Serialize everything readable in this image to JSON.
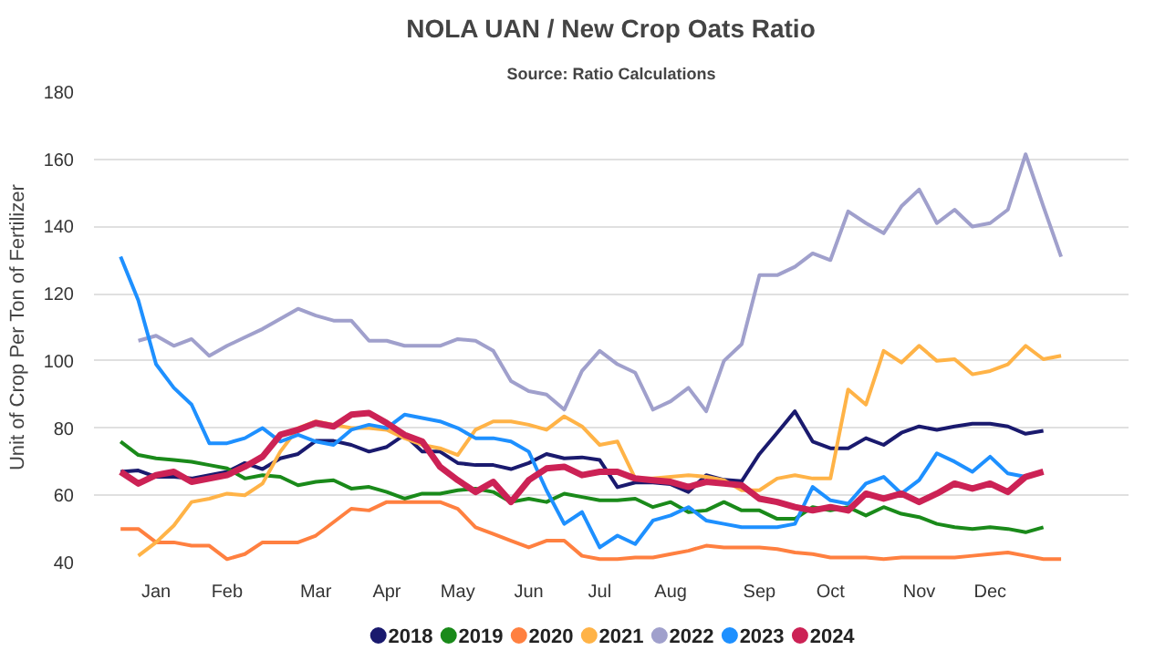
{
  "chart_data": {
    "type": "line",
    "title": "NOLA UAN / New Crop Oats Ratio",
    "subtitle": "Source: Ratio Calculations",
    "ylabel": "Unit of Crop Per Ton of Fertilizer",
    "categories": [
      null,
      null,
      "Jan",
      null,
      null,
      null,
      "Feb",
      null,
      null,
      null,
      null,
      "Mar",
      null,
      null,
      null,
      "Apr",
      null,
      null,
      null,
      "May",
      null,
      null,
      null,
      "Jun",
      null,
      null,
      null,
      "Jul",
      null,
      null,
      null,
      "Aug",
      null,
      null,
      null,
      null,
      "Sep",
      null,
      null,
      null,
      "Oct",
      null,
      null,
      null,
      null,
      "Nov",
      null,
      null,
      null,
      "Dec",
      null,
      null,
      null,
      null
    ],
    "ylim": [
      40,
      180
    ],
    "yticks": [
      40,
      60,
      80,
      100,
      120,
      140,
      160,
      180
    ],
    "grid": "y",
    "legend": "bottom",
    "series": [
      {
        "name": "2018",
        "color": "#1a1a6e",
        "values": [
          67,
          67.4,
          65.5,
          65.5,
          65,
          66,
          67,
          69.6,
          67.8,
          71,
          72.3,
          76.2,
          76.2,
          75,
          73,
          74.4,
          78,
          73,
          73,
          69.6,
          69,
          69,
          67.8,
          69.6,
          72.3,
          71,
          71.3,
          70.5,
          62.4,
          63.8,
          63.8,
          63.3,
          61,
          66,
          64.6,
          64.2,
          72.3,
          78.6,
          85,
          76,
          74,
          74,
          77,
          75,
          78.6,
          80.5,
          79.5,
          80.5,
          81.3,
          81.3,
          80.5,
          78.3,
          79.2,
          null
        ]
      },
      {
        "name": "2019",
        "color": "#1a8a1a",
        "values": [
          76,
          72,
          71,
          70.5,
          70,
          69,
          68,
          65,
          66,
          65.5,
          63,
          64,
          64.5,
          62,
          62.5,
          61,
          59,
          60.5,
          60.5,
          61.5,
          62,
          61,
          58,
          59,
          58,
          60.5,
          59.5,
          58.5,
          58.5,
          59,
          56.5,
          58,
          55,
          55.5,
          58,
          55.5,
          55.5,
          53,
          53,
          56.5,
          55.5,
          56.5,
          54,
          56.5,
          54.5,
          53.5,
          51.5,
          50.5,
          50,
          50.5,
          50,
          49,
          50.5,
          null
        ]
      },
      {
        "name": "2020",
        "color": "#ff8040",
        "values": [
          50,
          50,
          46,
          46,
          45,
          45,
          41,
          42.5,
          46,
          46,
          46,
          48,
          52,
          56,
          55.5,
          58,
          58,
          58,
          58,
          56,
          50.5,
          48.5,
          46.5,
          44.5,
          46.5,
          46.5,
          42,
          41,
          41,
          41.5,
          41.5,
          42.5,
          43.5,
          45,
          44.5,
          44.5,
          44.5,
          44,
          43,
          42.5,
          41.5,
          41.5,
          41.5,
          41,
          41.5,
          41.5,
          41.5,
          41.5,
          42,
          42.5,
          43,
          42,
          41,
          41
        ]
      },
      {
        "name": "2021",
        "color": "#ffb347",
        "values": [
          null,
          42,
          46,
          51,
          58,
          59,
          60.5,
          60,
          63.5,
          73,
          80,
          82,
          81,
          80,
          80,
          79.5,
          77,
          75,
          74,
          72,
          79.5,
          82,
          82,
          81,
          79.5,
          83.5,
          80.5,
          75,
          76,
          65,
          65,
          65.5,
          66,
          65.5,
          64.5,
          61.5,
          61.5,
          65,
          66,
          65,
          65,
          91.5,
          87,
          103,
          99.5,
          104.5,
          100,
          100.5,
          96,
          97,
          99,
          104.5,
          100.5,
          101.5
        ]
      },
      {
        "name": "2022",
        "color": "#a0a0cc",
        "values": [
          null,
          106,
          107.5,
          104.5,
          106.5,
          101.5,
          104.5,
          107,
          109.5,
          112.5,
          115.5,
          113.5,
          112,
          112,
          106,
          106,
          104.5,
          104.5,
          104.5,
          106.5,
          106,
          103,
          94,
          91,
          90,
          85.5,
          97,
          103,
          99,
          96.5,
          85.5,
          88,
          92,
          85,
          100,
          105,
          125.5,
          125.5,
          128,
          132,
          130,
          144.5,
          141,
          138,
          146,
          151,
          141,
          145,
          140,
          141,
          145,
          161.5,
          146,
          131
        ]
      },
      {
        "name": "2023",
        "color": "#1e90ff",
        "values": [
          131,
          118,
          99,
          92,
          87,
          75.5,
          75.5,
          77,
          80,
          76,
          78,
          76,
          75,
          79.5,
          81,
          80,
          84,
          83,
          82,
          80,
          77,
          77,
          76,
          73,
          61.5,
          51.5,
          55,
          44.5,
          48,
          45.5,
          52.5,
          54,
          56.5,
          52.5,
          51.5,
          50.5,
          50.5,
          50.5,
          51.5,
          62.5,
          58.5,
          57.5,
          63.5,
          65.5,
          60.5,
          64.5,
          72.5,
          70,
          67,
          71.5,
          66.5,
          65.5,
          null,
          null
        ]
      },
      {
        "name": "2024",
        "color": "#cc2255",
        "values": [
          67,
          63.5,
          66,
          67,
          64,
          65,
          66,
          68.5,
          71.5,
          78,
          79.5,
          81.5,
          80.5,
          84,
          84.5,
          81.5,
          78,
          76,
          68.5,
          64.5,
          61,
          64,
          58,
          64.5,
          68,
          68.5,
          66,
          67,
          67,
          65,
          64.5,
          64,
          62.5,
          64,
          63.5,
          63,
          59,
          58,
          56.5,
          55.5,
          56.5,
          55.5,
          60.5,
          59,
          60.5,
          58,
          60.5,
          63.5,
          62,
          63.5,
          61,
          65.5,
          67,
          null
        ]
      }
    ]
  }
}
